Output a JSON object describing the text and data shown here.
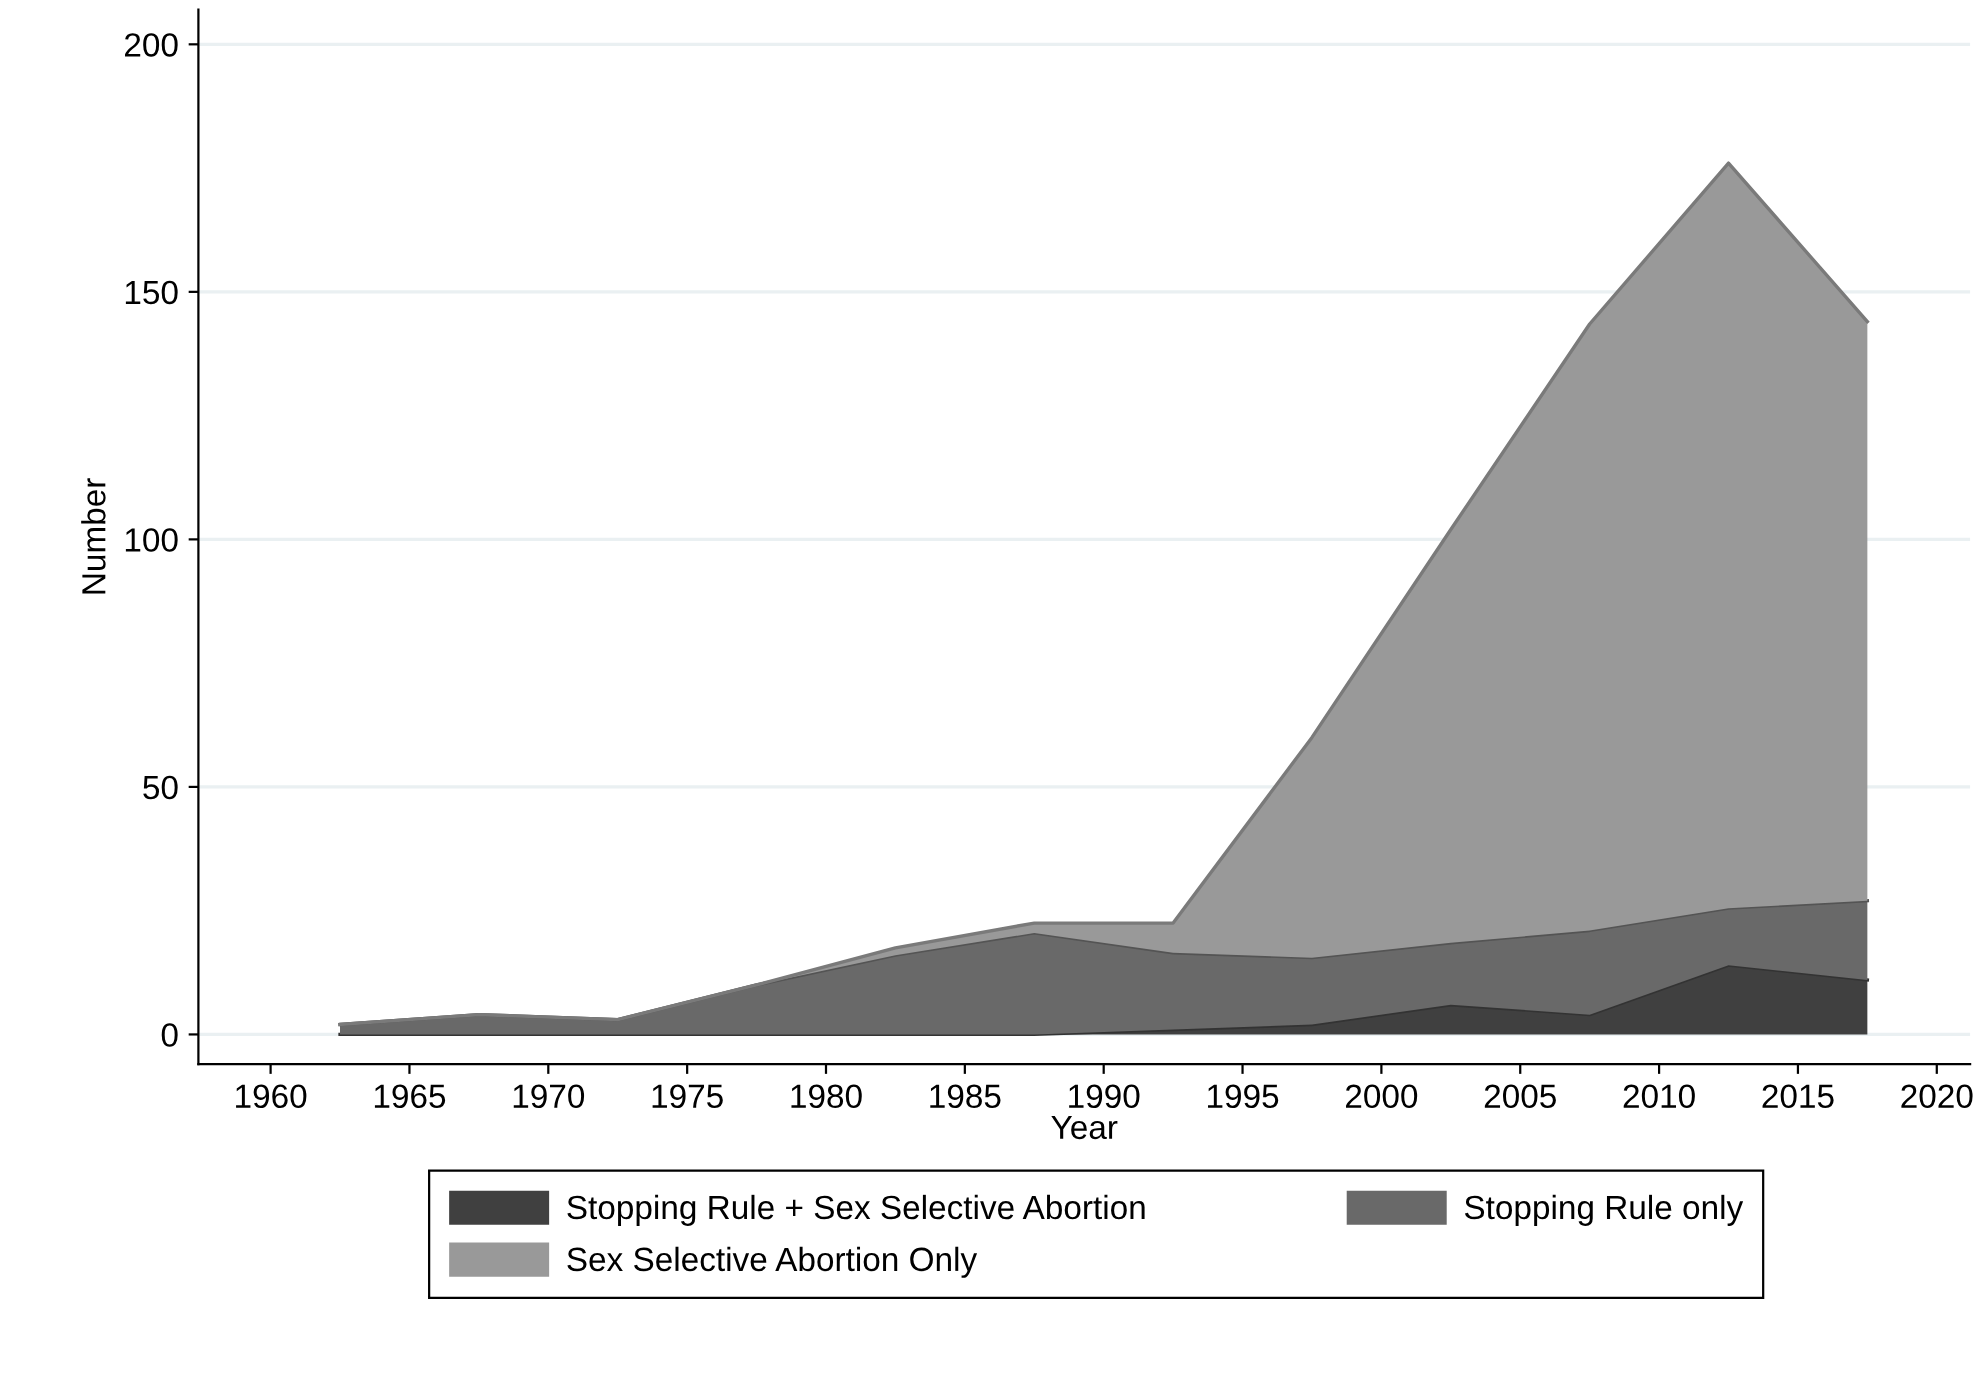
{
  "chart_data": {
    "type": "area",
    "stacked": true,
    "xlabel": "Year",
    "ylabel": "Number",
    "x": [
      1962.5,
      1967.5,
      1972.5,
      1977.5,
      1982.5,
      1987.5,
      1992.5,
      1997.5,
      2002.5,
      2007.5,
      2012.5,
      2017.5
    ],
    "series": [
      {
        "name": "Stopping Rule + Sex Selective Abortion",
        "color": "#404040",
        "values": [
          0,
          0,
          0,
          0,
          0,
          0,
          1,
          2,
          6,
          4,
          14,
          11
        ]
      },
      {
        "name": "Stopping Rule only",
        "color": "#696969",
        "values": [
          2,
          4,
          3,
          10,
          16,
          20.5,
          15.5,
          13.5,
          12.5,
          17,
          11.5,
          16
        ]
      },
      {
        "name": "Sex Selective Abortion Only",
        "color": "#999999",
        "values": [
          0,
          0,
          0,
          0,
          1.5,
          2,
          6,
          44.5,
          83.5,
          122.5,
          150.5,
          117
        ]
      }
    ],
    "xlim": [
      1957.4,
      2021.2
    ],
    "xticks": [
      1960,
      1965,
      1970,
      1975,
      1980,
      1985,
      1990,
      1995,
      2000,
      2005,
      2010,
      2015,
      2020
    ],
    "ylim": [
      -6,
      207
    ],
    "yticks": [
      0,
      50,
      100,
      150,
      200
    ],
    "grid": "y",
    "legend": "bottom"
  }
}
